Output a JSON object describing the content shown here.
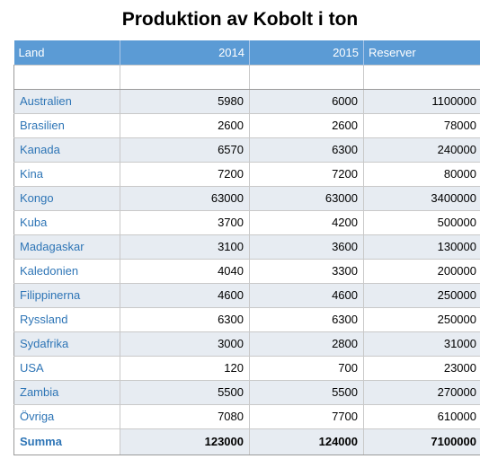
{
  "title": "Produktion av Kobolt i ton",
  "headers": {
    "land": "Land",
    "y2014": "2014",
    "y2015": "2015",
    "reserver": "Reserver"
  },
  "rows": [
    {
      "land": "Australien",
      "y2014": "5980",
      "y2015": "6000",
      "reserver": "1100000"
    },
    {
      "land": "Brasilien",
      "y2014": "2600",
      "y2015": "2600",
      "reserver": "78000"
    },
    {
      "land": "Kanada",
      "y2014": "6570",
      "y2015": "6300",
      "reserver": "240000"
    },
    {
      "land": "Kina",
      "y2014": "7200",
      "y2015": "7200",
      "reserver": "80000"
    },
    {
      "land": "Kongo",
      "y2014": "63000",
      "y2015": "63000",
      "reserver": "3400000"
    },
    {
      "land": "Kuba",
      "y2014": "3700",
      "y2015": "4200",
      "reserver": "500000"
    },
    {
      "land": "Madagaskar",
      "y2014": "3100",
      "y2015": "3600",
      "reserver": "130000"
    },
    {
      "land": "Kaledonien",
      "y2014": "4040",
      "y2015": "3300",
      "reserver": "200000"
    },
    {
      "land": "Filippinerna",
      "y2014": "4600",
      "y2015": "4600",
      "reserver": "250000"
    },
    {
      "land": "Ryssland",
      "y2014": "6300",
      "y2015": "6300",
      "reserver": "250000"
    },
    {
      "land": "Sydafrika",
      "y2014": "3000",
      "y2015": "2800",
      "reserver": "31000"
    },
    {
      "land": "USA",
      "y2014": "120",
      "y2015": "700",
      "reserver": "23000"
    },
    {
      "land": "Zambia",
      "y2014": "5500",
      "y2015": "5500",
      "reserver": "270000"
    },
    {
      "land": "Övriga",
      "y2014": "7080",
      "y2015": "7700",
      "reserver": "610000"
    }
  ],
  "total": {
    "land": "Summa",
    "y2014": "123000",
    "y2015": "124000",
    "reserver": "7100000"
  },
  "colors": {
    "header_bg": "#5b9bd5",
    "land_text": "#2e75b6",
    "band_bg": "#e7ecf2"
  }
}
